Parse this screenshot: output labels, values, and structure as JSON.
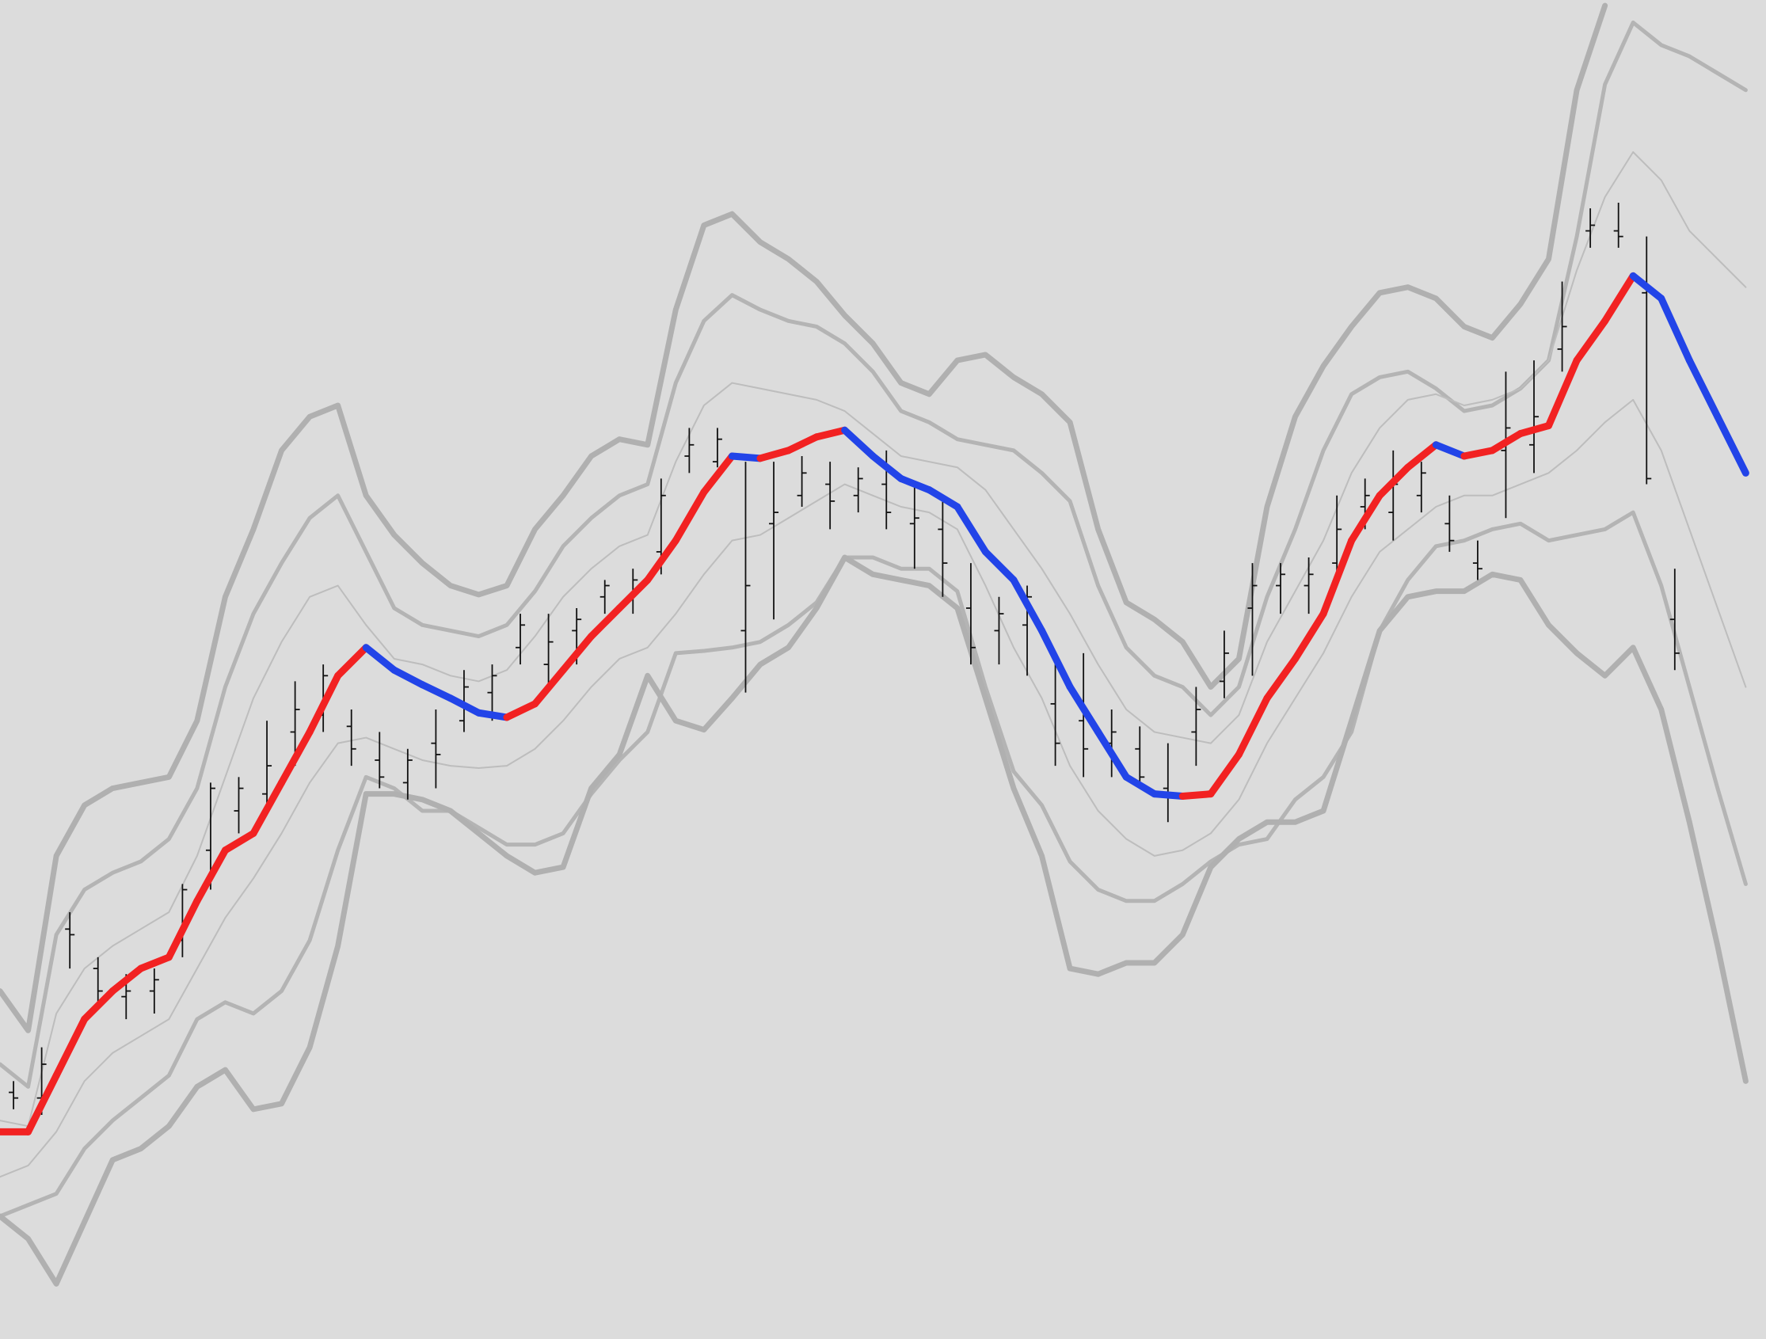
{
  "chart_data": {
    "type": "line",
    "xlim": [
      0,
      1568
    ],
    "ylim": [
      11,
      1200
    ],
    "x": [
      0,
      25,
      50,
      75,
      100,
      125,
      150,
      175,
      200,
      225,
      250,
      275,
      300,
      325,
      350,
      375,
      400,
      425,
      450,
      475,
      500,
      525,
      550,
      575,
      600,
      625,
      650,
      675,
      700,
      725,
      750,
      775,
      800,
      825,
      850,
      875,
      900,
      925,
      950,
      975,
      1000,
      1025,
      1050,
      1075,
      1100,
      1125,
      1150,
      1175,
      1200,
      1225,
      1250,
      1275,
      1300,
      1325,
      1350,
      1375,
      1400,
      1425,
      1450,
      1475,
      1500,
      1525,
      1550
    ],
    "series": [
      {
        "up_color": "#f22222",
        "down_color": "#2244e8",
        "values": [
          195,
          195,
          245,
          295,
          320,
          340,
          350,
          400,
          445,
          460,
          505,
          550,
          600,
          625,
          605,
          592,
          580,
          567,
          563,
          575,
          605,
          635,
          660,
          685,
          720,
          763,
          795,
          793,
          800,
          812,
          818,
          795,
          775,
          765,
          750,
          710,
          685,
          640,
          590,
          550,
          510,
          495,
          493,
          495,
          530,
          580,
          615,
          655,
          720,
          760,
          785,
          805,
          795,
          800,
          815,
          822,
          880,
          915,
          955,
          935,
          880,
          830,
          780
        ]
      },
      {
        "color": "#b0b0b0",
        "values": [
          320,
          285,
          440,
          485,
          500,
          505,
          510,
          560,
          670,
          730,
          800,
          830,
          840,
          760,
          725,
          700,
          680,
          672,
          680,
          730,
          760,
          795,
          810,
          805,
          925,
          1000,
          1010,
          985,
          970,
          950,
          920,
          895,
          860,
          850,
          880,
          885,
          865,
          850,
          825,
          730,
          665,
          650,
          630,
          590,
          615,
          750,
          830,
          875,
          910,
          940,
          945,
          935,
          910,
          900,
          930,
          970,
          1120,
          1195,
          null,
          null,
          null,
          null,
          null
        ]
      },
      {
        "color": "#b4b4b4",
        "values": [
          255,
          235,
          370,
          410,
          425,
          435,
          455,
          500,
          590,
          655,
          700,
          740,
          760,
          710,
          660,
          645,
          640,
          635,
          645,
          675,
          715,
          740,
          760,
          770,
          860,
          915,
          938,
          925,
          915,
          910,
          895,
          870,
          835,
          825,
          810,
          805,
          800,
          780,
          755,
          680,
          625,
          600,
          590,
          565,
          590,
          670,
          730,
          800,
          850,
          865,
          870,
          855,
          835,
          840,
          855,
          880,
          990,
          1125,
          1180,
          1160,
          1150,
          1135,
          1120
        ]
      },
      {
        "color": "#bdbdbd",
        "values": [
          205,
          200,
          300,
          340,
          360,
          375,
          390,
          440,
          510,
          580,
          630,
          670,
          680,
          645,
          615,
          610,
          600,
          595,
          605,
          635,
          670,
          695,
          715,
          725,
          790,
          840,
          860,
          855,
          850,
          845,
          835,
          815,
          795,
          790,
          785,
          765,
          730,
          695,
          655,
          610,
          570,
          550,
          545,
          540,
          565,
          630,
          675,
          720,
          780,
          820,
          845,
          850,
          840,
          845,
          855,
          880,
          960,
          1025,
          1065,
          1040,
          995,
          970,
          945
        ]
      },
      {
        "color": "#bdbdbd",
        "values": [
          155,
          165,
          195,
          240,
          265,
          280,
          295,
          340,
          385,
          420,
          460,
          505,
          540,
          545,
          535,
          525,
          520,
          518,
          520,
          535,
          560,
          590,
          615,
          625,
          655,
          690,
          720,
          725,
          740,
          755,
          770,
          760,
          750,
          745,
          730,
          680,
          625,
          580,
          520,
          480,
          455,
          440,
          445,
          460,
          490,
          540,
          580,
          620,
          670,
          710,
          730,
          750,
          760,
          760,
          770,
          780,
          800,
          825,
          845,
          800,
          730,
          660,
          590
        ]
      },
      {
        "color": "#b4b4b4",
        "values": [
          120,
          130,
          140,
          180,
          205,
          225,
          245,
          295,
          310,
          300,
          320,
          365,
          445,
          510,
          500,
          480,
          480,
          465,
          450,
          450,
          460,
          495,
          525,
          550,
          620,
          622,
          625,
          630,
          645,
          665,
          705,
          705,
          695,
          695,
          675,
          590,
          515,
          485,
          435,
          410,
          400,
          400,
          415,
          435,
          450,
          455,
          490,
          510,
          550,
          640,
          685,
          715,
          720,
          730,
          735,
          720,
          725,
          730,
          745,
          680,
          590,
          500,
          415
        ]
      },
      {
        "color": "#b0b0b0",
        "values": [
          120,
          100,
          60,
          115,
          170,
          180,
          200,
          235,
          250,
          215,
          220,
          270,
          360,
          495,
          495,
          490,
          480,
          460,
          440,
          425,
          430,
          500,
          530,
          600,
          560,
          552,
          580,
          610,
          625,
          660,
          705,
          690,
          685,
          680,
          660,
          580,
          500,
          440,
          340,
          335,
          345,
          345,
          370,
          430,
          455,
          470,
          470,
          480,
          560,
          640,
          670,
          675,
          675,
          690,
          685,
          645,
          620,
          600,
          625,
          570,
          470,
          360,
          240
        ]
      }
    ],
    "ohlc": {
      "color": "#111111",
      "x": [
        12,
        37,
        62,
        87,
        112,
        137,
        162,
        187,
        212,
        237,
        262,
        287,
        312,
        337,
        362,
        387,
        412,
        437,
        462,
        487,
        512,
        537,
        562,
        587,
        612,
        637,
        662,
        687,
        712,
        737,
        762,
        787,
        812,
        837,
        862,
        887,
        912,
        937,
        962,
        987,
        1012,
        1037,
        1062,
        1087,
        1112,
        1137,
        1162,
        1187,
        1212,
        1237,
        1262,
        1287,
        1312,
        1337,
        1362,
        1387,
        1412,
        1437,
        1462,
        1487
      ],
      "open": [
        230,
        225,
        375,
        340,
        315,
        320,
        365,
        445,
        480,
        495,
        550,
        565,
        555,
        525,
        505,
        540,
        560,
        585,
        625,
        610,
        640,
        670,
        670,
        710,
        795,
        790,
        640,
        735,
        760,
        770,
        760,
        770,
        735,
        730,
        660,
        640,
        645,
        575,
        560,
        540,
        535,
        500,
        550,
        595,
        660,
        680,
        680,
        700,
        750,
        745,
        760,
        735,
        700,
        800,
        805,
        890,
        995,
        995,
        940,
        650
      ],
      "high": [
        240,
        270,
        390,
        350,
        335,
        340,
        415,
        505,
        510,
        560,
        595,
        610,
        570,
        550,
        535,
        570,
        605,
        610,
        655,
        655,
        660,
        685,
        695,
        775,
        820,
        820,
        790,
        790,
        795,
        790,
        785,
        800,
        770,
        760,
        700,
        670,
        680,
        620,
        620,
        570,
        555,
        540,
        590,
        640,
        700,
        700,
        705,
        760,
        775,
        800,
        790,
        760,
        720,
        870,
        880,
        950,
        1015,
        1020,
        990,
        695
      ],
      "low": [
        215,
        210,
        340,
        305,
        295,
        300,
        350,
        410,
        460,
        480,
        520,
        550,
        520,
        500,
        490,
        500,
        550,
        560,
        610,
        590,
        610,
        655,
        655,
        690,
        780,
        785,
        585,
        650,
        750,
        730,
        745,
        730,
        695,
        670,
        610,
        610,
        600,
        520,
        510,
        510,
        500,
        470,
        520,
        580,
        600,
        655,
        655,
        680,
        730,
        720,
        745,
        710,
        685,
        740,
        780,
        870,
        980,
        980,
        770,
        605
      ],
      "close": [
        225,
        255,
        370,
        320,
        320,
        330,
        410,
        500,
        500,
        520,
        570,
        600,
        535,
        510,
        525,
        530,
        590,
        600,
        645,
        630,
        650,
        680,
        685,
        760,
        805,
        810,
        680,
        745,
        780,
        755,
        775,
        745,
        740,
        700,
        625,
        655,
        670,
        540,
        535,
        550,
        510,
        495,
        570,
        620,
        680,
        690,
        690,
        730,
        760,
        770,
        780,
        720,
        695,
        820,
        830,
        910,
        1000,
        990,
        775,
        620
      ]
    }
  }
}
